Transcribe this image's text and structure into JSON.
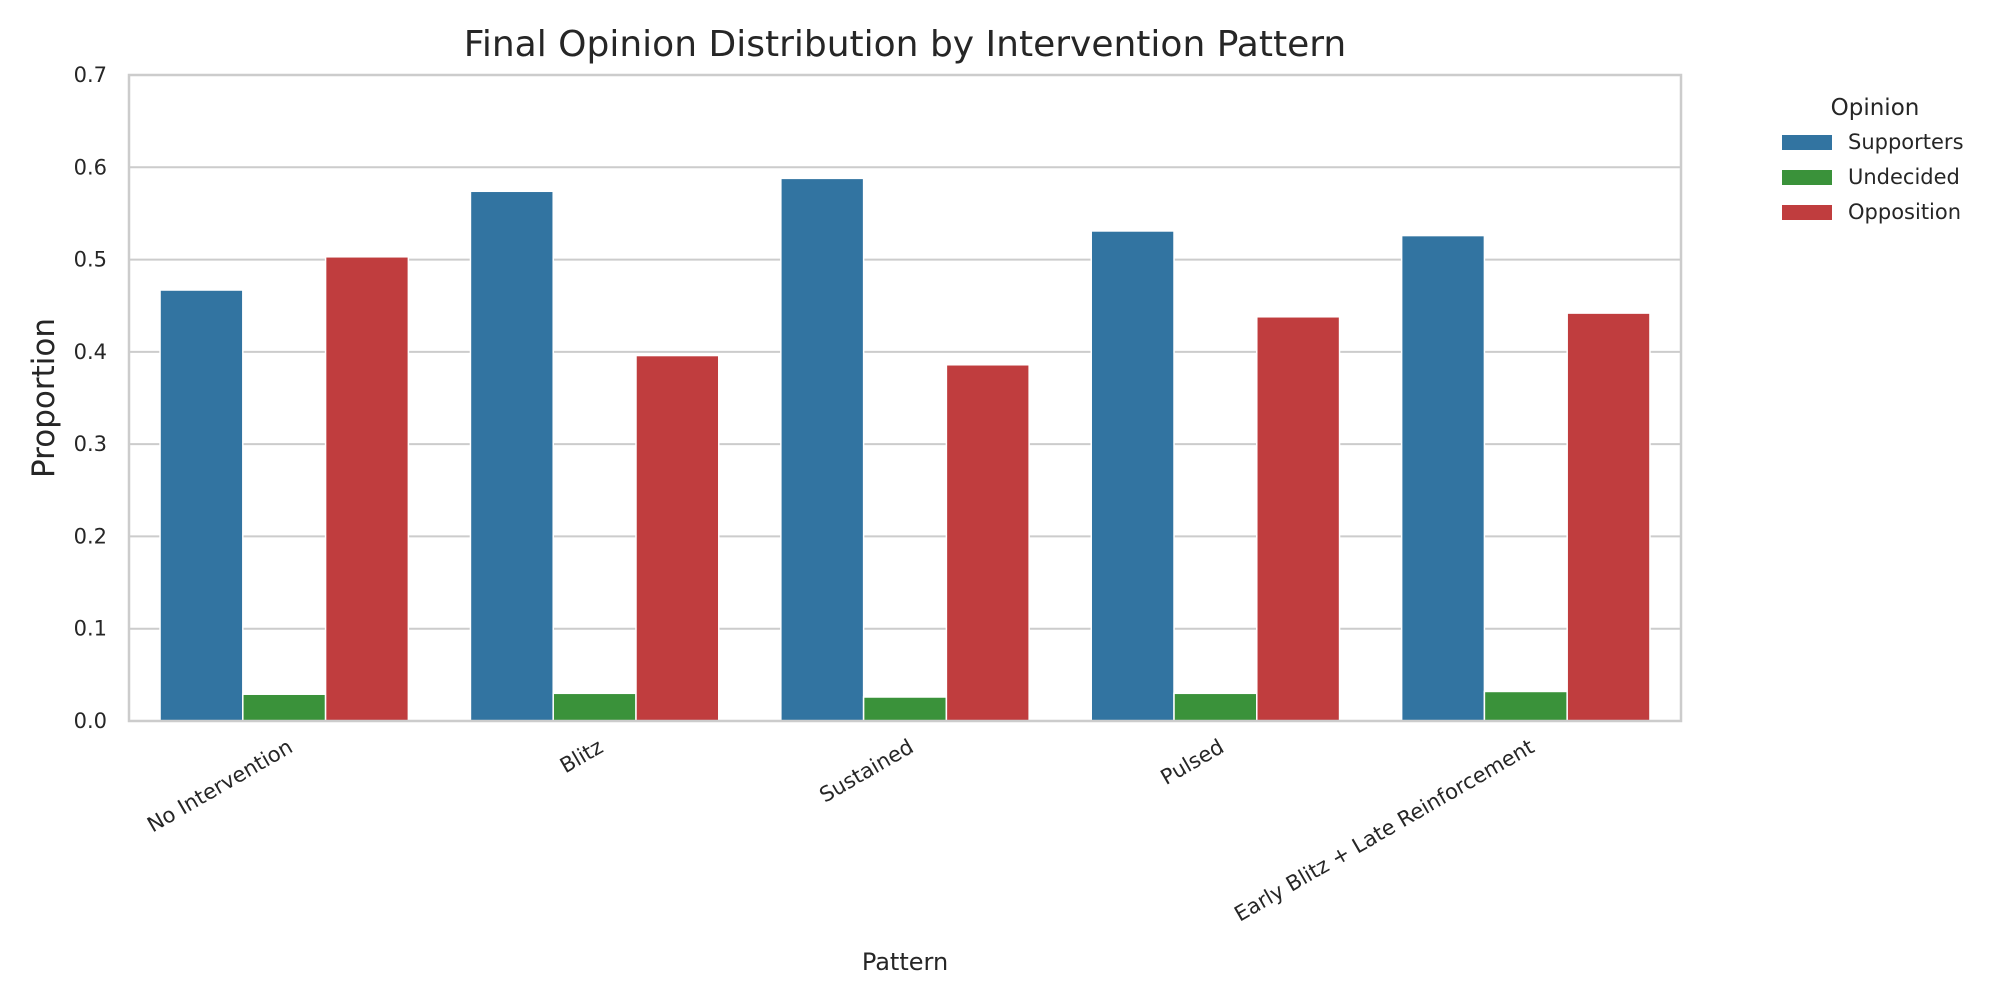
{
  "chart_data": {
    "type": "bar",
    "title": "Final Opinion Distribution by Intervention Pattern",
    "xlabel": "Pattern",
    "ylabel": "Proportion",
    "ylim": [
      0,
      0.7
    ],
    "yticks": [
      "0.0",
      "0.1",
      "0.2",
      "0.3",
      "0.4",
      "0.5",
      "0.6",
      "0.7"
    ],
    "grid": true,
    "legend": {
      "title": "Opinion",
      "placement": "outside-right-top"
    },
    "categories": [
      "No Intervention",
      "Blitz",
      "Sustained",
      "Pulsed",
      "Early Blitz + Late Reinforcement"
    ],
    "series": [
      {
        "name": "Supporters",
        "color": "#3274a1",
        "values": [
          0.467,
          0.574,
          0.588,
          0.531,
          0.526
        ]
      },
      {
        "name": "Undecided",
        "color": "#3a923a",
        "values": [
          0.029,
          0.03,
          0.026,
          0.03,
          0.032
        ]
      },
      {
        "name": "Opposition",
        "color": "#c03d3e",
        "values": [
          0.503,
          0.396,
          0.386,
          0.438,
          0.442
        ]
      }
    ]
  }
}
